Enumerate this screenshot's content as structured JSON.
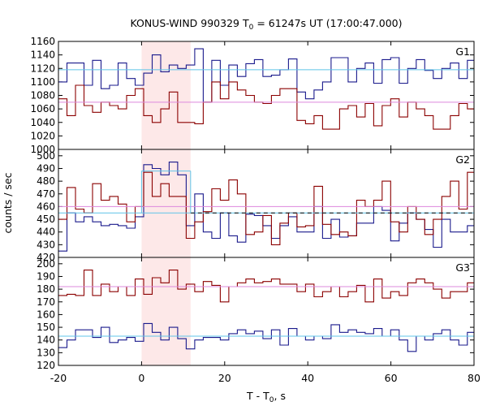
{
  "chart_data": {
    "type": "line",
    "title_main": "KONUS-WIND 990329 T",
    "title_sub": "0",
    "title_rest": " = 61247s UT (17:00:47.000)",
    "xlabel_main": "T - T",
    "xlabel_sub": "0",
    "xlabel_rest": ", s",
    "ylabel": "counts / sec",
    "xlim": [
      -20,
      80
    ],
    "x_ticks": [
      "-20",
      "0",
      "20",
      "40",
      "60",
      "80"
    ],
    "x_tick_values": [
      -20,
      0,
      20,
      40,
      60,
      80
    ],
    "highlight": {
      "x0": 0,
      "x1": 11.8,
      "color": "#fde8e8"
    },
    "bin_edges": [
      -20,
      -17.95,
      -15.9,
      -13.85,
      -11.8,
      -9.75,
      -7.7,
      -5.65,
      -3.6,
      -1.55,
      0.5,
      2.55,
      4.6,
      6.65,
      8.7,
      10.75,
      12.8,
      14.85,
      16.9,
      18.95,
      21.0,
      23.05,
      25.1,
      27.15,
      29.2,
      31.25,
      33.3,
      35.35,
      37.4,
      39.45,
      41.5,
      43.55,
      45.6,
      47.65,
      49.7,
      51.75,
      53.8,
      55.85,
      57.9,
      59.95,
      62.0,
      64.05,
      66.1,
      68.15,
      70.2,
      72.25,
      74.3,
      76.35,
      78.4,
      80
    ],
    "panels": [
      {
        "label": "G1",
        "ylim": [
          1000,
          1160
        ],
        "y_ticks": [
          "1000",
          "1020",
          "1040",
          "1060",
          "1080",
          "1100",
          "1120",
          "1140",
          "1160"
        ],
        "y_tick_values": [
          1000,
          1020,
          1040,
          1060,
          1080,
          1100,
          1120,
          1140,
          1160
        ],
        "series": [
          {
            "color": "#1a1a8c",
            "values": [
              1100,
              1128,
              1128,
              1095,
              1132,
              1090,
              1095,
              1128,
              1105,
              1095,
              1113,
              1140,
              1115,
              1125,
              1120,
              1125,
              1149,
              1070,
              1132,
              1095,
              1125,
              1108,
              1127,
              1133,
              1108,
              1110,
              1118,
              1134,
              1085,
              1075,
              1088,
              1100,
              1136,
              1136,
              1100,
              1120,
              1128,
              1098,
              1133,
              1136,
              1098,
              1120,
              1133,
              1117,
              1105,
              1120,
              1128,
              1105,
              1132
            ]
          },
          {
            "color": "#8b0000",
            "values": [
              1075,
              1050,
              1095,
              1065,
              1055,
              1070,
              1065,
              1060,
              1080,
              1090,
              1050,
              1040,
              1060,
              1085,
              1040,
              1040,
              1038,
              1070,
              1100,
              1075,
              1100,
              1088,
              1080,
              1070,
              1068,
              1080,
              1090,
              1090,
              1043,
              1038,
              1050,
              1030,
              1030,
              1060,
              1065,
              1048,
              1068,
              1035,
              1065,
              1075,
              1048,
              1070,
              1060,
              1050,
              1030,
              1030,
              1050,
              1068,
              1060
            ]
          }
        ],
        "means": [
          {
            "color": "#5fc4e8",
            "value": 1118,
            "x0": -20,
            "x1": 80,
            "dash": false
          },
          {
            "color": "#dd88dd",
            "value": 1070,
            "x0": -20,
            "x1": 80,
            "dash": false
          }
        ]
      },
      {
        "label": "G2",
        "ylim": [
          420,
          505
        ],
        "y_ticks": [
          "420",
          "430",
          "440",
          "450",
          "460",
          "470",
          "480",
          "490",
          "500"
        ],
        "y_tick_values": [
          420,
          430,
          440,
          450,
          460,
          470,
          480,
          490,
          500
        ],
        "series": [
          {
            "color": "#1a1a8c",
            "values": [
              425,
              455,
              448,
              452,
              448,
              445,
              446,
              445,
              443,
              452,
              493,
              490,
              485,
              495,
              485,
              445,
              470,
              440,
              435,
              455,
              437,
              432,
              454,
              453,
              445,
              435,
              445,
              452,
              440,
              440,
              460,
              435,
              450,
              436,
              437,
              447,
              447,
              460,
              457,
              433,
              447,
              455,
              450,
              442,
              428,
              450,
              440,
              440,
              445
            ]
          },
          {
            "color": "#8b0000",
            "values": [
              450,
              475,
              458,
              455,
              478,
              465,
              468,
              462,
              448,
              460,
              487,
              468,
              478,
              468,
              468,
              435,
              448,
              456,
              474,
              465,
              481,
              470,
              438,
              440,
              453,
              430,
              447,
              455,
              444,
              445,
              476,
              446,
              438,
              440,
              437,
              465,
              460,
              465,
              480,
              448,
              440,
              460,
              450,
              438,
              450,
              468,
              480,
              458,
              487
            ]
          }
        ],
        "means": [
          {
            "color": "#5fc4e8",
            "value": 455,
            "x0": -20,
            "x1": 80,
            "dash": false
          },
          {
            "color": "#dd88dd",
            "value": 460,
            "x0": -20,
            "x1": 80,
            "dash": false
          },
          {
            "color": "#000000",
            "value": 455,
            "x0": 11.8,
            "x1": 80,
            "dash": true
          },
          {
            "color": "#5fc4e8",
            "value": 488,
            "x0": 0,
            "x1": 11.8,
            "dash": false
          }
        ]
      },
      {
        "label": "G3",
        "ylim": [
          120,
          205
        ],
        "y_ticks": [
          "120",
          "130",
          "140",
          "150",
          "160",
          "170",
          "180",
          "190",
          "200"
        ],
        "y_tick_values": [
          120,
          130,
          140,
          150,
          160,
          170,
          180,
          190,
          200
        ],
        "series": [
          {
            "color": "#1a1a8c",
            "values": [
              134,
              140,
              148,
              148,
              142,
              150,
              138,
              140,
              142,
              139,
              153,
              146,
              140,
              150,
              141,
              133,
              140,
              142,
              142,
              140,
              145,
              148,
              145,
              147,
              141,
              148,
              136,
              149,
              143,
              140,
              143,
              141,
              152,
              146,
              148,
              146,
              145,
              149,
              143,
              148,
              140,
              131,
              143,
              140,
              145,
              148,
              140,
              136,
              146
            ]
          },
          {
            "color": "#8b0000",
            "values": [
              175,
              176,
              175,
              195,
              175,
              184,
              178,
              182,
              175,
              188,
              176,
              189,
              185,
              195,
              180,
              184,
              178,
              186,
              183,
              170,
              182,
              185,
              188,
              185,
              186,
              188,
              184,
              184,
              178,
              184,
              174,
              178,
              182,
              174,
              178,
              183,
              170,
              188,
              173,
              178,
              175,
              185,
              188,
              185,
              180,
              173,
              178,
              178,
              185
            ]
          }
        ],
        "means": [
          {
            "color": "#5fc4e8",
            "value": 143,
            "x0": -20,
            "x1": 80,
            "dash": false
          },
          {
            "color": "#dd88dd",
            "value": 182,
            "x0": -20,
            "x1": 80,
            "dash": false
          }
        ]
      }
    ]
  }
}
